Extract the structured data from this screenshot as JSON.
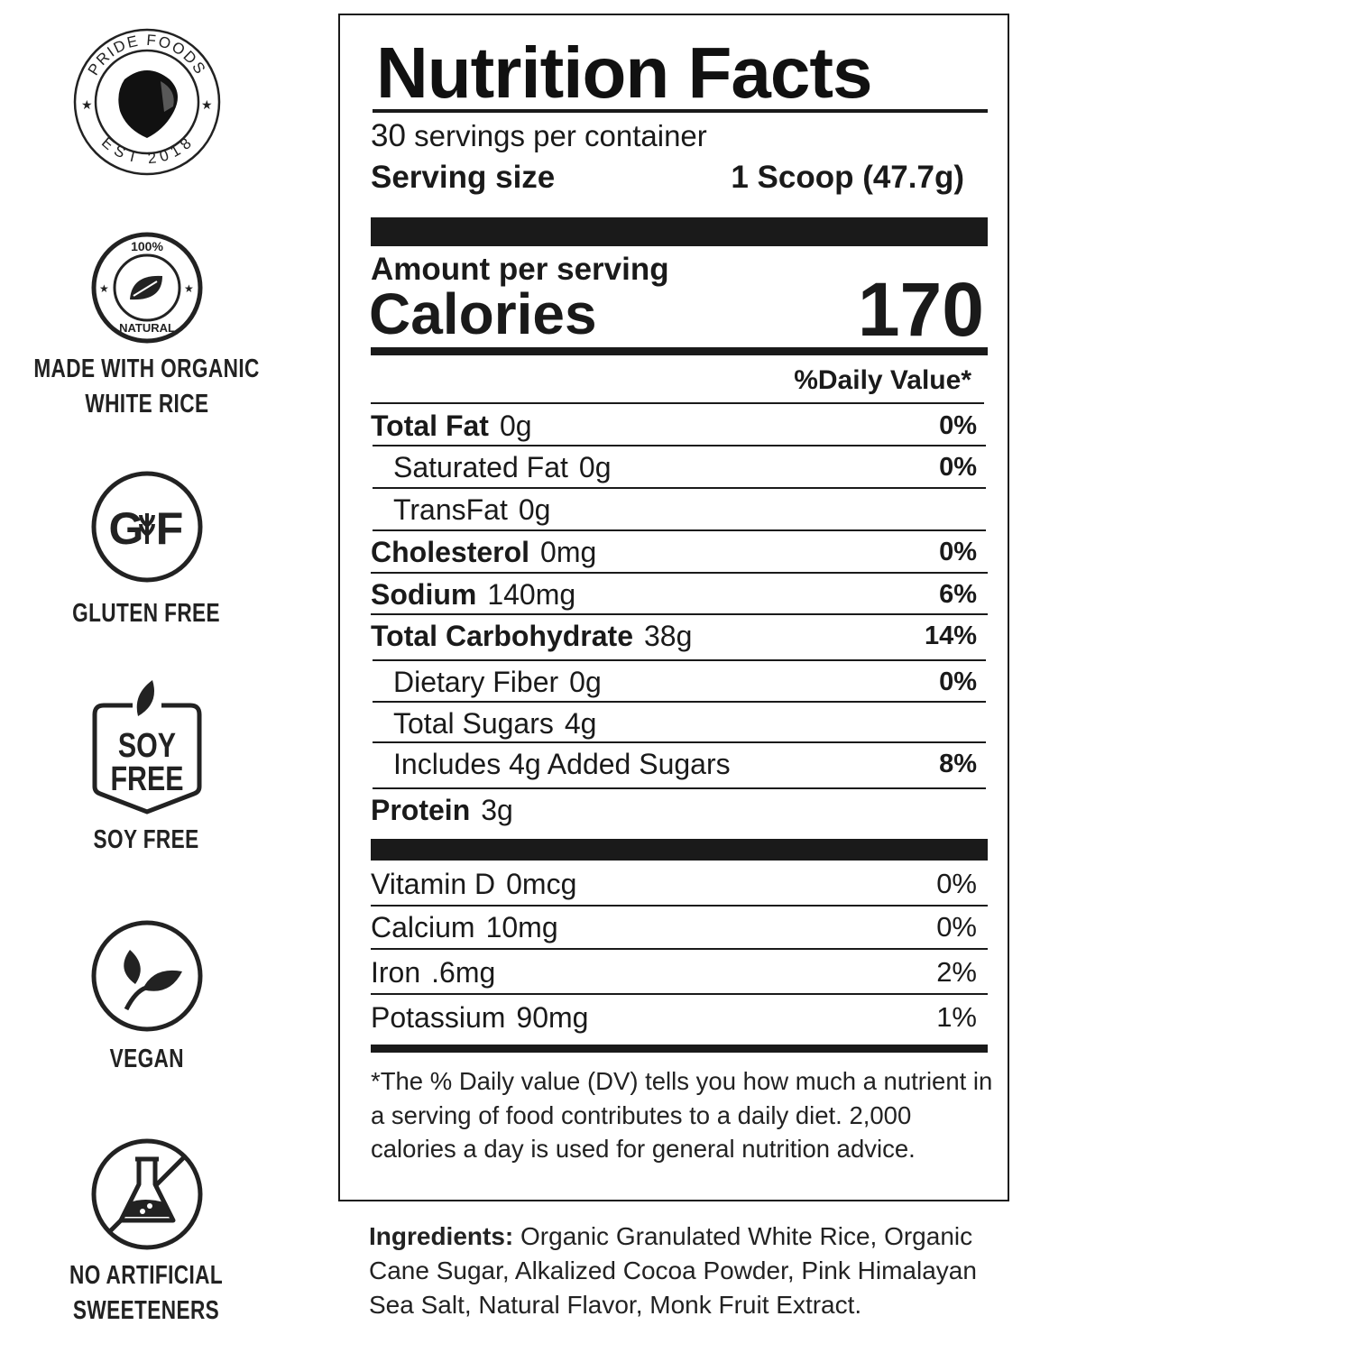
{
  "badges": [
    {
      "icon": "pride-foods-lion-logo",
      "logo_text": [
        "PRIDE FOODS",
        "EST 2018"
      ],
      "label": ""
    },
    {
      "icon": "100-percent-natural-leaf-seal",
      "logo_text": [
        "100%",
        "NATURAL"
      ],
      "label_lines": [
        "MADE WITH ORGANIC",
        "WHITE RICE"
      ]
    },
    {
      "icon": "gluten-free-icon",
      "logo_text": [
        "G",
        "F"
      ],
      "label_lines": [
        "GLUTEN FREE"
      ]
    },
    {
      "icon": "soy-free-icon",
      "logo_text": [
        "SOY",
        "FREE"
      ],
      "label_lines": [
        "SOY FREE"
      ]
    },
    {
      "icon": "vegan-leaf-icon",
      "label_lines": [
        "VEGAN"
      ]
    },
    {
      "icon": "no-artificial-flask-icon",
      "label_lines": [
        "NO ARTIFICIAL",
        "SWEETENERS"
      ]
    }
  ],
  "label": {
    "title": "Nutrition Facts",
    "servings_count": "30",
    "servings_text": "servings per container",
    "serving_size_label": "Serving size",
    "serving_size_value": "1 Scoop (47.7g)",
    "amount_per_serving": "Amount per serving",
    "calories_label": "Calories",
    "calories_value": "170",
    "daily_value_header": "%Daily Value*",
    "nutrients": [
      {
        "name": "Total Fat",
        "amount": "0g",
        "dv": "0%",
        "indent": false
      },
      {
        "name": "Saturated Fat",
        "amount": "0g",
        "dv": "0%",
        "indent": true
      },
      {
        "name": "TransFat",
        "amount": "0g",
        "dv": "",
        "indent": true
      },
      {
        "name": "Cholesterol",
        "amount": "0mg",
        "dv": "0%",
        "indent": false
      },
      {
        "name": "Sodium",
        "amount": "140mg",
        "dv": "6%",
        "indent": false
      },
      {
        "name": "Total Carbohydrate",
        "amount": "38g",
        "dv": "14%",
        "indent": false
      },
      {
        "name": "Dietary Fiber",
        "amount": "0g",
        "dv": "0%",
        "indent": true
      },
      {
        "name": "Total Sugars",
        "amount": "4g",
        "dv": "",
        "indent": true
      },
      {
        "name": "Includes 4g Added Sugars",
        "amount": "",
        "dv": "8%",
        "indent": true
      },
      {
        "name": "Protein",
        "amount": "3g",
        "dv": "",
        "indent": false
      }
    ],
    "vitamins": [
      {
        "name": "Vitamin D",
        "amount": "0mcg",
        "dv": "0%"
      },
      {
        "name": "Calcium",
        "amount": "10mg",
        "dv": "0%"
      },
      {
        "name": "Iron",
        "amount": ".6mg",
        "dv": "2%"
      },
      {
        "name": "Potassium",
        "amount": "90mg",
        "dv": "1%"
      }
    ],
    "footnote": "*The % Daily value (DV) tells you how much a nutrient in a serving of food contributes to a daily diet. 2,000 calories a day is used for general nutrition advice."
  },
  "ingredients": {
    "label": "Ingredients:",
    "text": "Organic Granulated White Rice, Organic Cane Sugar, Alkalized Cocoa Powder, Pink Himalayan Sea Salt, Natural Flavor, Monk Fruit Extract."
  }
}
